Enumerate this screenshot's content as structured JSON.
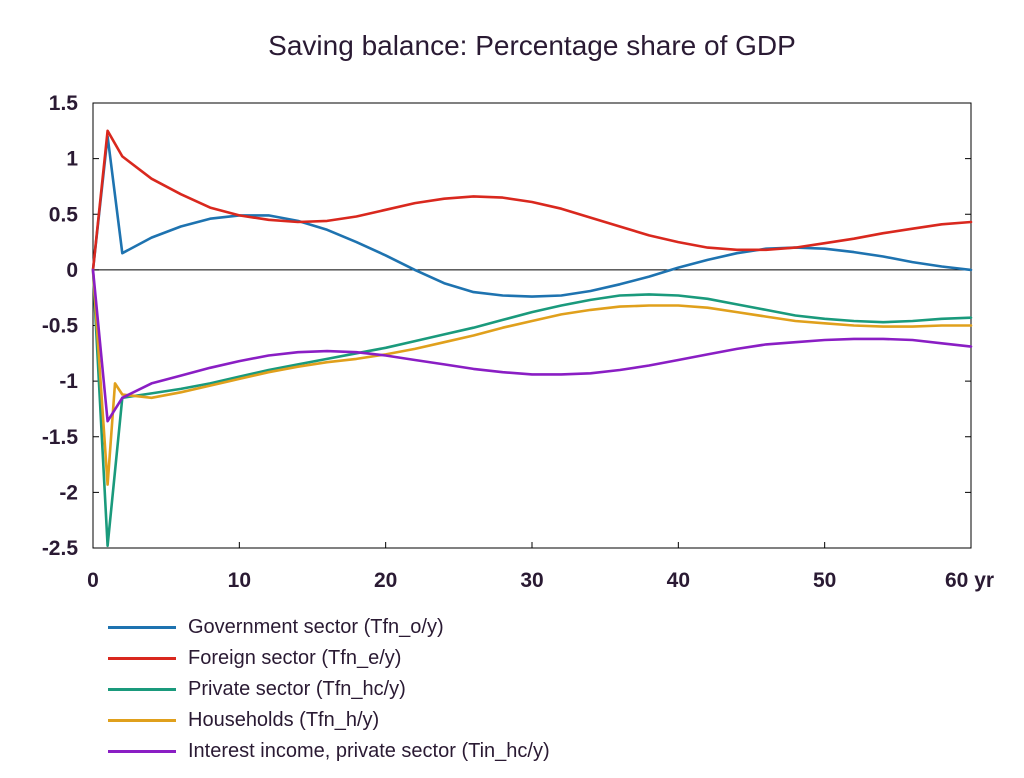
{
  "chart_data": {
    "type": "line",
    "title": "Saving balance: Percentage share of GDP",
    "xlabel": "",
    "ylabel": "",
    "x_unit_label": "yr",
    "xlim": [
      0,
      60
    ],
    "ylim": [
      -2.5,
      1.5
    ],
    "x_ticks": [
      0,
      10,
      20,
      30,
      40,
      50,
      60
    ],
    "x_tick_labels": [
      "0",
      "10",
      "20",
      "30",
      "40",
      "50",
      "60 yr"
    ],
    "y_ticks": [
      1.5,
      1,
      0.5,
      0,
      -0.5,
      -1,
      -1.5,
      -2,
      -2.5
    ],
    "y_tick_labels": [
      "1.5",
      "1",
      "0.5",
      "0",
      "-0.5",
      "-1",
      "-1.5",
      "-2",
      "-2.5"
    ],
    "grid": false,
    "zero_line": true,
    "legend_position": "bottom-left",
    "series": [
      {
        "name": "Government sector (Tfn_o/y)",
        "color": "#1e73b0",
        "x": [
          0,
          1,
          2,
          4,
          6,
          8,
          10,
          12,
          14,
          16,
          18,
          20,
          22,
          24,
          26,
          28,
          30,
          32,
          34,
          36,
          38,
          40,
          42,
          44,
          46,
          48,
          50,
          52,
          54,
          56,
          58,
          60
        ],
        "y": [
          0,
          1.2,
          0.15,
          0.29,
          0.39,
          0.46,
          0.49,
          0.49,
          0.44,
          0.36,
          0.25,
          0.13,
          0.0,
          -0.12,
          -0.2,
          -0.23,
          -0.24,
          -0.23,
          -0.19,
          -0.13,
          -0.06,
          0.02,
          0.09,
          0.15,
          0.19,
          0.2,
          0.19,
          0.16,
          0.12,
          0.07,
          0.03,
          0.0
        ]
      },
      {
        "name": "Foreign sector (Tfn_e/y)",
        "color": "#d9281e",
        "x": [
          0,
          1,
          2,
          4,
          6,
          8,
          10,
          12,
          14,
          16,
          18,
          20,
          22,
          24,
          26,
          28,
          30,
          32,
          34,
          36,
          38,
          40,
          42,
          44,
          46,
          48,
          50,
          52,
          54,
          56,
          58,
          60
        ],
        "y": [
          0,
          1.25,
          1.02,
          0.82,
          0.68,
          0.56,
          0.49,
          0.45,
          0.43,
          0.44,
          0.48,
          0.54,
          0.6,
          0.64,
          0.66,
          0.65,
          0.61,
          0.55,
          0.47,
          0.39,
          0.31,
          0.25,
          0.2,
          0.18,
          0.18,
          0.2,
          0.24,
          0.28,
          0.33,
          0.37,
          0.41,
          0.43
        ]
      },
      {
        "name": "Private sector (Tfn_hc/y)",
        "color": "#1a9a7c",
        "x": [
          0,
          1,
          2,
          4,
          6,
          8,
          10,
          12,
          14,
          16,
          18,
          20,
          22,
          24,
          26,
          28,
          30,
          32,
          34,
          36,
          38,
          40,
          42,
          44,
          46,
          48,
          50,
          52,
          54,
          56,
          58,
          60
        ],
        "y": [
          0,
          -2.48,
          -1.15,
          -1.11,
          -1.07,
          -1.02,
          -0.96,
          -0.9,
          -0.85,
          -0.8,
          -0.75,
          -0.7,
          -0.64,
          -0.58,
          -0.52,
          -0.45,
          -0.38,
          -0.32,
          -0.27,
          -0.23,
          -0.22,
          -0.23,
          -0.26,
          -0.31,
          -0.36,
          -0.41,
          -0.44,
          -0.46,
          -0.47,
          -0.46,
          -0.44,
          -0.43
        ]
      },
      {
        "name": "Households (Tfn_h/y)",
        "color": "#e0a01c",
        "x": [
          0,
          1,
          1.5,
          2,
          4,
          6,
          8,
          10,
          12,
          14,
          16,
          18,
          20,
          22,
          24,
          26,
          28,
          30,
          32,
          34,
          36,
          38,
          40,
          42,
          44,
          46,
          48,
          50,
          52,
          54,
          56,
          58,
          60
        ],
        "y": [
          0,
          -1.93,
          -1.02,
          -1.12,
          -1.15,
          -1.1,
          -1.04,
          -0.98,
          -0.92,
          -0.87,
          -0.83,
          -0.8,
          -0.76,
          -0.71,
          -0.65,
          -0.59,
          -0.52,
          -0.46,
          -0.4,
          -0.36,
          -0.33,
          -0.32,
          -0.32,
          -0.34,
          -0.38,
          -0.42,
          -0.46,
          -0.48,
          -0.5,
          -0.51,
          -0.51,
          -0.5,
          -0.5
        ]
      },
      {
        "name": "Interest income, private sector (Tin_hc/y)",
        "color": "#8a1ec4",
        "x": [
          0,
          1,
          2,
          4,
          6,
          8,
          10,
          12,
          14,
          16,
          18,
          20,
          22,
          24,
          26,
          28,
          30,
          32,
          34,
          36,
          38,
          40,
          42,
          44,
          46,
          48,
          50,
          52,
          54,
          56,
          58,
          60
        ],
        "y": [
          0,
          -1.36,
          -1.15,
          -1.02,
          -0.95,
          -0.88,
          -0.82,
          -0.77,
          -0.74,
          -0.73,
          -0.74,
          -0.77,
          -0.81,
          -0.85,
          -0.89,
          -0.92,
          -0.94,
          -0.94,
          -0.93,
          -0.9,
          -0.86,
          -0.81,
          -0.76,
          -0.71,
          -0.67,
          -0.65,
          -0.63,
          -0.62,
          -0.62,
          -0.63,
          -0.66,
          -0.69
        ]
      }
    ]
  }
}
